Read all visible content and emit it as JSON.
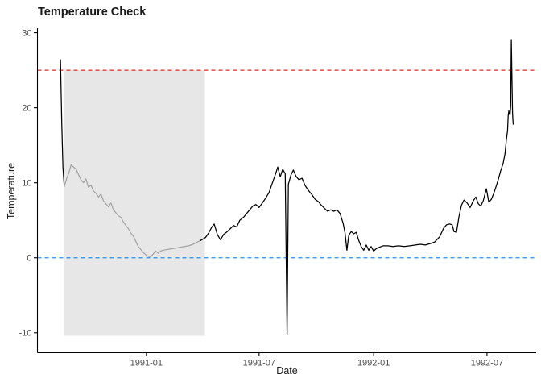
{
  "title": "Temperature Check",
  "chart_data": {
    "type": "line",
    "title": "Temperature Check",
    "xlabel": "Date",
    "ylabel": "Temperature",
    "x_domain": [
      "1990-07-10",
      "1992-09-18"
    ],
    "y_domain": [
      -12.6,
      30.6
    ],
    "grid": false,
    "legend": false,
    "x_ticks": [
      {
        "value": "1991-01-01",
        "label": "1991-01"
      },
      {
        "value": "1991-07-01",
        "label": "1991-07"
      },
      {
        "value": "1992-01-01",
        "label": "1992-01"
      },
      {
        "value": "1992-07-01",
        "label": "1992-07"
      }
    ],
    "y_ticks": [
      {
        "value": -10,
        "label": "-10"
      },
      {
        "value": 0,
        "label": "0"
      },
      {
        "value": 10,
        "label": "10"
      },
      {
        "value": 20,
        "label": "20"
      },
      {
        "value": 30,
        "label": "30"
      }
    ],
    "reference_lines": [
      {
        "name": "upper-threshold",
        "y": 25,
        "color": "#e8241d",
        "style": "dashed"
      },
      {
        "name": "zero-line",
        "y": 0,
        "color": "#1e90ff",
        "style": "dashed"
      }
    ],
    "shaded_region": {
      "x_start": "1990-08-22",
      "x_end": "1991-04-05",
      "y_min": -10.4,
      "y_max": 25,
      "fill": "#e7e7e7"
    },
    "highlight_segment": {
      "start": "1990-08-22",
      "end": "1991-03-30",
      "color": "#a4a4a4"
    },
    "series": [
      {
        "name": "temperature",
        "color": "#000000",
        "points": [
          [
            "1990-08-16",
            26.4
          ],
          [
            "1990-08-18",
            18.0
          ],
          [
            "1990-08-20",
            12.0
          ],
          [
            "1990-08-22",
            9.5
          ],
          [
            "1990-08-26",
            10.6
          ],
          [
            "1990-08-29",
            11.2
          ],
          [
            "1990-09-02",
            12.4
          ],
          [
            "1990-09-06",
            12.1
          ],
          [
            "1990-09-10",
            11.8
          ],
          [
            "1990-09-14",
            11.1
          ],
          [
            "1990-09-18",
            10.4
          ],
          [
            "1990-09-22",
            10.0
          ],
          [
            "1990-09-26",
            10.5
          ],
          [
            "1990-09-30",
            9.4
          ],
          [
            "1990-10-04",
            9.7
          ],
          [
            "1990-10-08",
            8.9
          ],
          [
            "1990-10-12",
            8.6
          ],
          [
            "1990-10-16",
            8.1
          ],
          [
            "1990-10-20",
            8.5
          ],
          [
            "1990-10-24",
            7.6
          ],
          [
            "1990-10-28",
            7.2
          ],
          [
            "1990-11-01",
            6.8
          ],
          [
            "1990-11-05",
            7.3
          ],
          [
            "1990-11-09",
            6.4
          ],
          [
            "1990-11-13",
            6.0
          ],
          [
            "1990-11-17",
            5.6
          ],
          [
            "1990-11-21",
            5.4
          ],
          [
            "1990-11-25",
            4.8
          ],
          [
            "1990-11-29",
            4.3
          ],
          [
            "1990-12-03",
            3.9
          ],
          [
            "1990-12-07",
            3.3
          ],
          [
            "1990-12-11",
            2.9
          ],
          [
            "1990-12-15",
            2.2
          ],
          [
            "1990-12-19",
            1.5
          ],
          [
            "1990-12-23",
            1.1
          ],
          [
            "1990-12-27",
            0.7
          ],
          [
            "1990-12-31",
            0.4
          ],
          [
            "1991-01-04",
            0.2
          ],
          [
            "1991-01-08",
            0.15
          ],
          [
            "1991-01-12",
            0.5
          ],
          [
            "1991-01-16",
            0.9
          ],
          [
            "1991-01-20",
            0.6
          ],
          [
            "1991-01-24",
            0.9
          ],
          [
            "1991-01-28",
            1.0
          ],
          [
            "1991-02-03",
            1.1
          ],
          [
            "1991-02-10",
            1.2
          ],
          [
            "1991-02-17",
            1.3
          ],
          [
            "1991-02-24",
            1.4
          ],
          [
            "1991-03-03",
            1.5
          ],
          [
            "1991-03-10",
            1.6
          ],
          [
            "1991-03-17",
            1.8
          ],
          [
            "1991-03-24",
            2.1
          ],
          [
            "1991-03-29",
            2.3
          ],
          [
            "1991-04-06",
            2.7
          ],
          [
            "1991-04-11",
            3.3
          ],
          [
            "1991-04-16",
            4.1
          ],
          [
            "1991-04-20",
            4.5
          ],
          [
            "1991-04-25",
            3.1
          ],
          [
            "1991-04-30",
            2.4
          ],
          [
            "1991-05-05",
            3.1
          ],
          [
            "1991-05-11",
            3.5
          ],
          [
            "1991-05-16",
            3.9
          ],
          [
            "1991-05-21",
            4.3
          ],
          [
            "1991-05-26",
            4.1
          ],
          [
            "1991-05-31",
            5.0
          ],
          [
            "1991-06-06",
            5.4
          ],
          [
            "1991-06-11",
            5.9
          ],
          [
            "1991-06-16",
            6.4
          ],
          [
            "1991-06-21",
            6.9
          ],
          [
            "1991-06-26",
            7.1
          ],
          [
            "1991-07-01",
            6.7
          ],
          [
            "1991-07-07",
            7.4
          ],
          [
            "1991-07-12",
            8.0
          ],
          [
            "1991-07-17",
            8.7
          ],
          [
            "1991-07-22",
            9.9
          ],
          [
            "1991-07-28",
            11.3
          ],
          [
            "1991-07-31",
            12.1
          ],
          [
            "1991-08-04",
            10.8
          ],
          [
            "1991-08-08",
            11.8
          ],
          [
            "1991-08-12",
            11.2
          ],
          [
            "1991-08-15",
            -10.2
          ],
          [
            "1991-08-17",
            9.8
          ],
          [
            "1991-08-21",
            11.0
          ],
          [
            "1991-08-25",
            11.7
          ],
          [
            "1991-08-29",
            10.9
          ],
          [
            "1991-09-03",
            10.4
          ],
          [
            "1991-09-08",
            10.6
          ],
          [
            "1991-09-13",
            9.6
          ],
          [
            "1991-09-19",
            8.9
          ],
          [
            "1991-09-24",
            8.4
          ],
          [
            "1991-09-29",
            7.8
          ],
          [
            "1991-10-04",
            7.5
          ],
          [
            "1991-10-09",
            7.0
          ],
          [
            "1991-10-14",
            6.6
          ],
          [
            "1991-10-19",
            6.2
          ],
          [
            "1991-10-24",
            6.4
          ],
          [
            "1991-10-29",
            6.2
          ],
          [
            "1991-11-03",
            6.4
          ],
          [
            "1991-11-08",
            5.9
          ],
          [
            "1991-11-13",
            4.6
          ],
          [
            "1991-11-16",
            3.3
          ],
          [
            "1991-11-19",
            1.0
          ],
          [
            "1991-11-22",
            3.0
          ],
          [
            "1991-11-26",
            3.5
          ],
          [
            "1991-11-30",
            3.2
          ],
          [
            "1991-12-04",
            3.4
          ],
          [
            "1991-12-08",
            2.3
          ],
          [
            "1991-12-12",
            1.5
          ],
          [
            "1991-12-16",
            1.0
          ],
          [
            "1991-12-20",
            1.7
          ],
          [
            "1991-12-24",
            1.0
          ],
          [
            "1991-12-28",
            1.5
          ],
          [
            "1992-01-01",
            0.9
          ],
          [
            "1992-01-05",
            1.2
          ],
          [
            "1992-01-10",
            1.4
          ],
          [
            "1992-01-16",
            1.6
          ],
          [
            "1992-01-24",
            1.6
          ],
          [
            "1992-02-01",
            1.5
          ],
          [
            "1992-02-10",
            1.6
          ],
          [
            "1992-02-19",
            1.5
          ],
          [
            "1992-02-28",
            1.6
          ],
          [
            "1992-03-08",
            1.7
          ],
          [
            "1992-03-16",
            1.8
          ],
          [
            "1992-03-24",
            1.7
          ],
          [
            "1992-04-01",
            1.9
          ],
          [
            "1992-04-08",
            2.1
          ],
          [
            "1992-04-16",
            2.8
          ],
          [
            "1992-04-22",
            3.9
          ],
          [
            "1992-04-27",
            4.4
          ],
          [
            "1992-05-02",
            4.5
          ],
          [
            "1992-05-06",
            4.4
          ],
          [
            "1992-05-09",
            3.5
          ],
          [
            "1992-05-13",
            3.4
          ],
          [
            "1992-05-17",
            5.5
          ],
          [
            "1992-05-21",
            7.0
          ],
          [
            "1992-05-25",
            7.7
          ],
          [
            "1992-05-30",
            7.3
          ],
          [
            "1992-06-04",
            6.7
          ],
          [
            "1992-06-09",
            7.6
          ],
          [
            "1992-06-13",
            8.1
          ],
          [
            "1992-06-17",
            7.2
          ],
          [
            "1992-06-21",
            6.9
          ],
          [
            "1992-06-25",
            7.6
          ],
          [
            "1992-06-30",
            9.2
          ],
          [
            "1992-07-04",
            7.4
          ],
          [
            "1992-07-08",
            7.8
          ],
          [
            "1992-07-12",
            8.6
          ],
          [
            "1992-07-16",
            9.6
          ],
          [
            "1992-07-19",
            10.4
          ],
          [
            "1992-07-23",
            11.6
          ],
          [
            "1992-07-27",
            12.6
          ],
          [
            "1992-07-30",
            13.9
          ],
          [
            "1992-08-01",
            15.7
          ],
          [
            "1992-08-03",
            16.9
          ],
          [
            "1992-08-04",
            18.9
          ],
          [
            "1992-08-05",
            19.6
          ],
          [
            "1992-08-07",
            19.0
          ],
          [
            "1992-08-08",
            20.2
          ],
          [
            "1992-08-09",
            29.1
          ],
          [
            "1992-08-11",
            19.3
          ],
          [
            "1992-08-12",
            17.8
          ]
        ]
      }
    ],
    "axis_color": "#000000",
    "tick_label_color": "#4d4d4d"
  }
}
